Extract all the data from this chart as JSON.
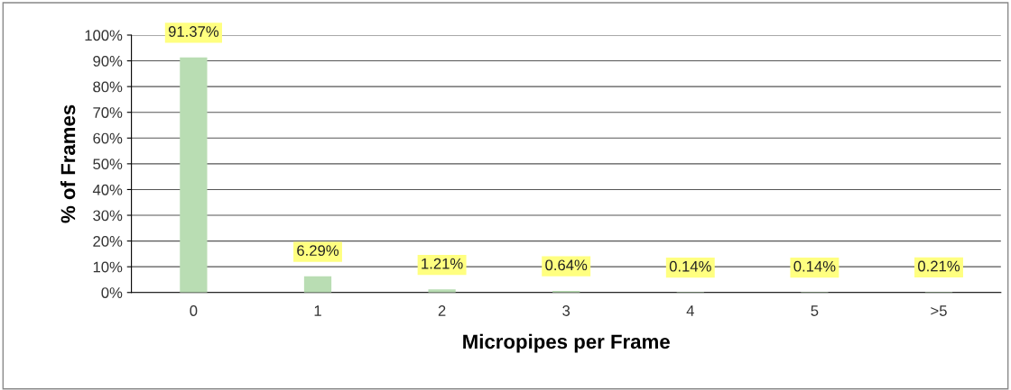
{
  "chart_data": {
    "type": "bar",
    "xlabel": "Micropipes per Frame",
    "ylabel": "% of Frames",
    "categories": [
      "0",
      "1",
      "2",
      "3",
      "4",
      "5",
      ">5"
    ],
    "values": [
      91.37,
      6.29,
      1.21,
      0.64,
      0.14,
      0.14,
      0.21
    ],
    "value_labels": [
      "91.37%",
      "6.29%",
      "1.21%",
      "0.64%",
      "0.14%",
      "0.14%",
      "0.21%"
    ],
    "color": "#b9ddb3",
    "ylim": [
      0,
      100
    ],
    "yticks": [
      {
        "value": 0,
        "label": "0%"
      },
      {
        "value": 10,
        "label": "10%"
      },
      {
        "value": 20,
        "label": "20%"
      },
      {
        "value": 30,
        "label": "30%"
      },
      {
        "value": 40,
        "label": "40%"
      },
      {
        "value": 50,
        "label": "50%"
      },
      {
        "value": 60,
        "label": "60%"
      },
      {
        "value": 70,
        "label": "70%"
      },
      {
        "value": 80,
        "label": "80%"
      },
      {
        "value": 90,
        "label": "90%"
      },
      {
        "value": 100,
        "label": "100%"
      }
    ],
    "grid": "y",
    "legend": false
  }
}
